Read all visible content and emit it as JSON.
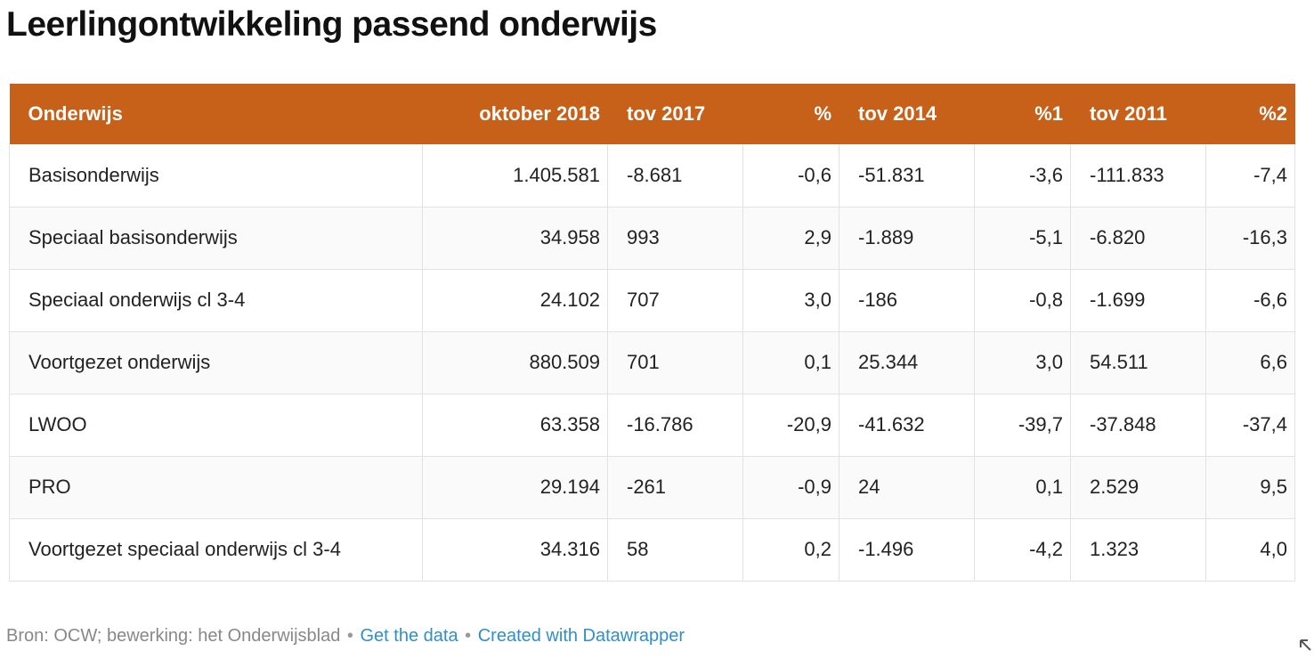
{
  "title": "Leerlingontwikkeling passend onderwijs",
  "table": {
    "headers": [
      "Onderwijs",
      "oktober 2018",
      "tov 2017",
      "%",
      "tov 2014",
      "%1",
      "tov 2011",
      "%2"
    ],
    "rows": [
      [
        "Basisonderwijs",
        "1.405.581",
        "-8.681",
        "-0,6",
        "-51.831",
        "-3,6",
        "-111.833",
        "-7,4"
      ],
      [
        "Speciaal basisonderwijs",
        "34.958",
        "993",
        "2,9",
        "-1.889",
        "-5,1",
        "-6.820",
        "-16,3"
      ],
      [
        "Speciaal onderwijs cl 3-4",
        "24.102",
        "707",
        "3,0",
        "-186",
        "-0,8",
        "-1.699",
        "-6,6"
      ],
      [
        "Voortgezet onderwijs",
        "880.509",
        "701",
        "0,1",
        "25.344",
        "3,0",
        "54.511",
        "6,6"
      ],
      [
        "LWOO",
        "63.358",
        "-16.786",
        "-20,9",
        "-41.632",
        "-39,7",
        "-37.848",
        "-37,4"
      ],
      [
        "PRO",
        "29.194",
        "-261",
        "-0,9",
        "24",
        "0,1",
        "2.529",
        "9,5"
      ],
      [
        "Voortgezet speciaal onderwijs cl 3-4",
        "34.316",
        "58",
        "0,2",
        "-1.496",
        "-4,2",
        "1.323",
        "4,0"
      ]
    ]
  },
  "footer": {
    "source": "Bron: OCW; bewerking: het Onderwijsblad",
    "separator": "•",
    "get_data": "Get the data",
    "created_with": "Created with Datawrapper"
  },
  "colors": {
    "header_bg": "#c7611a",
    "header_text": "#ffffff",
    "link": "#2f8fc7"
  },
  "icons": {
    "corner": "resize-icon"
  },
  "chart_data": {
    "type": "table",
    "title": "Leerlingontwikkeling passend onderwijs",
    "columns": [
      "Onderwijs",
      "oktober 2018",
      "tov 2017",
      "%",
      "tov 2014",
      "%1",
      "tov 2011",
      "%2"
    ],
    "rows": [
      [
        "Basisonderwijs",
        1405581,
        -8681,
        -0.6,
        -51831,
        -3.6,
        -111833,
        -7.4
      ],
      [
        "Speciaal basisonderwijs",
        34958,
        993,
        2.9,
        -1889,
        -5.1,
        -6820,
        -16.3
      ],
      [
        "Speciaal onderwijs cl 3-4",
        24102,
        707,
        3.0,
        -186,
        -0.8,
        -1699,
        -6.6
      ],
      [
        "Voortgezet onderwijs",
        880509,
        701,
        0.1,
        25344,
        3.0,
        54511,
        6.6
      ],
      [
        "LWOO",
        63358,
        -16786,
        -20.9,
        -41632,
        -39.7,
        -37848,
        -37.4
      ],
      [
        "PRO",
        29194,
        -261,
        -0.9,
        24,
        0.1,
        2529,
        9.5
      ],
      [
        "Voortgezet speciaal onderwijs cl 3-4",
        34316,
        58,
        0.2,
        -1496,
        -4.2,
        1323,
        4.0
      ]
    ]
  }
}
